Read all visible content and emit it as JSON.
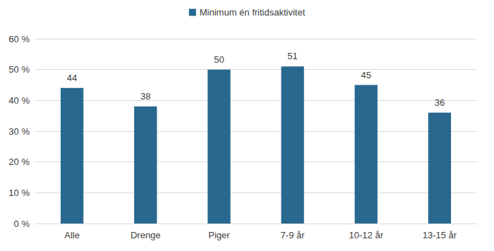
{
  "chart_data": {
    "type": "bar",
    "categories": [
      "Alle",
      "Drenge",
      "Piger",
      "7-9 år",
      "10-12 år",
      "13-15 år"
    ],
    "series": [
      {
        "name": "Minimum én fritidsaktivitet",
        "color": "#28688f",
        "values": [
          44,
          38,
          50,
          51,
          45,
          36
        ]
      }
    ],
    "ylim": [
      0,
      60
    ],
    "yticks": [
      {
        "value": 0,
        "label": "0 %"
      },
      {
        "value": 10,
        "label": "10 %"
      },
      {
        "value": 20,
        "label": "20 %"
      },
      {
        "value": 30,
        "label": "30 %"
      },
      {
        "value": 40,
        "label": "40 %"
      },
      {
        "value": 50,
        "label": "50 %"
      },
      {
        "value": 60,
        "label": "60 %"
      }
    ],
    "grid": true,
    "legend": "top",
    "data_labels": true
  }
}
